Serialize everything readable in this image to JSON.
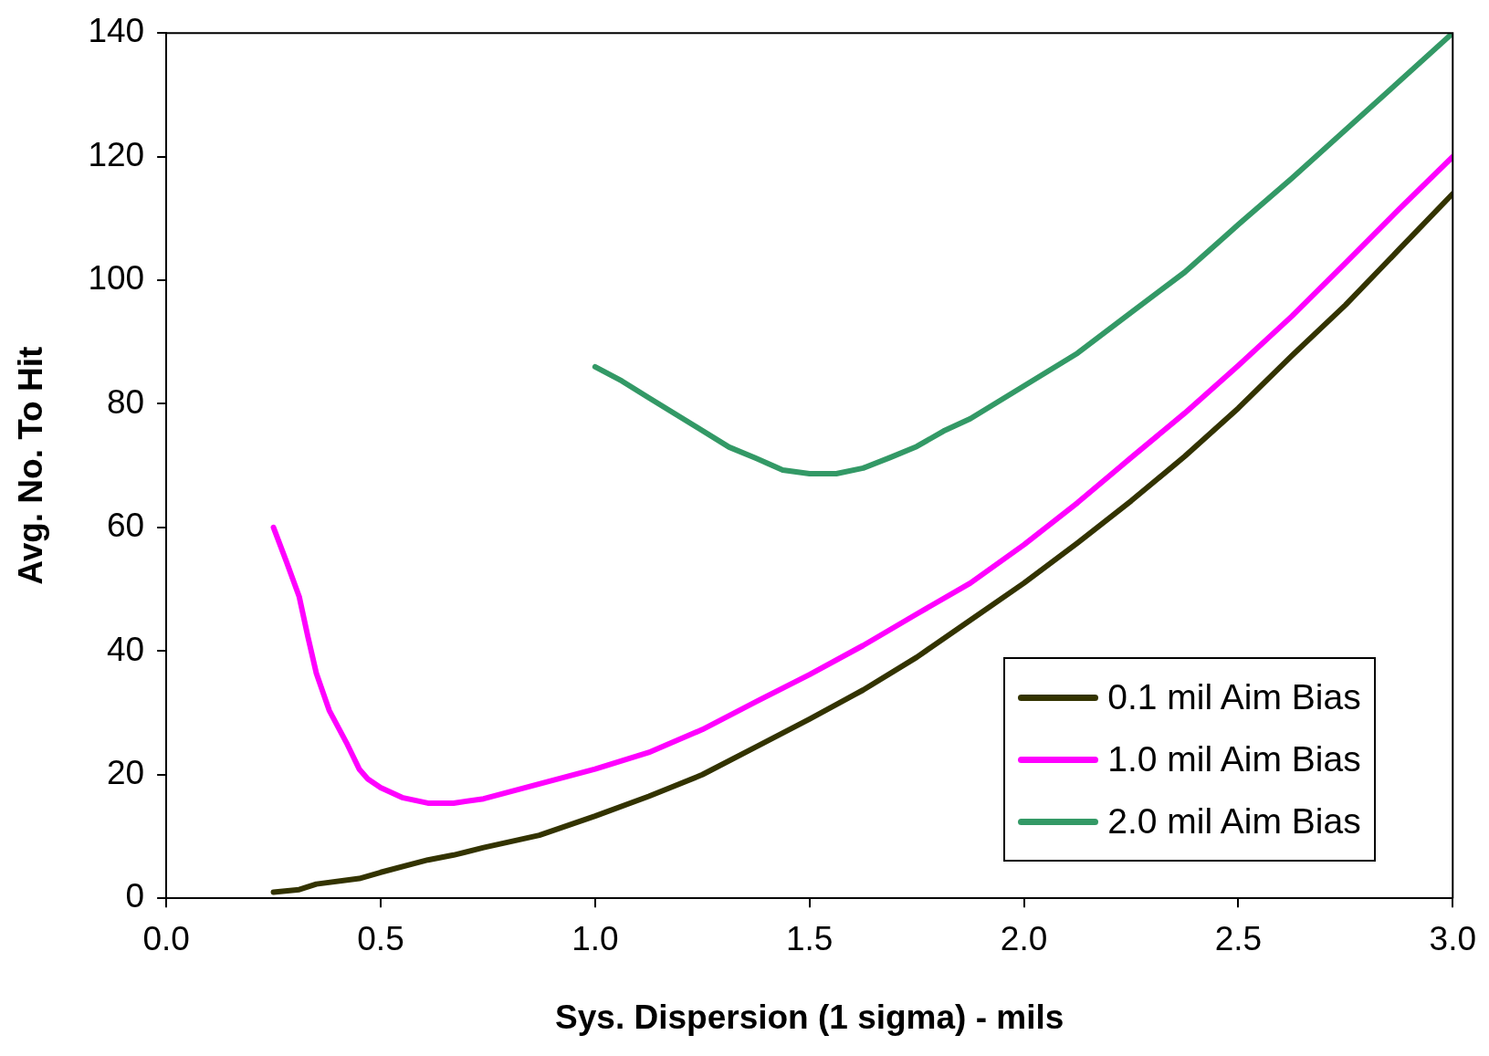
{
  "chart_data": {
    "type": "line",
    "xlabel": "Sys. Dispersion (1 sigma) - mils",
    "ylabel": "Avg. No. To Hit",
    "xlim": [
      0,
      3
    ],
    "xticks": [
      {
        "value": 0,
        "label": "0.0"
      },
      {
        "value": 0.5,
        "label": "0.5"
      },
      {
        "value": 1,
        "label": "1.0"
      },
      {
        "value": 1.5,
        "label": "1.5"
      },
      {
        "value": 2,
        "label": "2.0"
      },
      {
        "value": 2.5,
        "label": "2.5"
      },
      {
        "value": 3,
        "label": "3.0"
      }
    ],
    "ylim": [
      0,
      140
    ],
    "yticks": [
      0,
      20,
      40,
      60,
      80,
      100,
      120,
      140
    ],
    "grid": false,
    "legend": "bottom right",
    "marker": "none",
    "line_style": "solid",
    "series": [
      {
        "name": "0.1 mil Aim Bias",
        "color": "#333300",
        "x": [
          0.25,
          0.31,
          0.35,
          0.45,
          0.5,
          0.61,
          0.67,
          0.74,
          0.87,
          1.0,
          1.125,
          1.25,
          1.375,
          1.5,
          1.625,
          1.75,
          1.875,
          2.0,
          2.125,
          2.25,
          2.375,
          2.5,
          2.625,
          2.75,
          2.875,
          3.0
        ],
        "values": [
          1,
          1.4,
          2.3,
          3.2,
          4.2,
          6.2,
          7,
          8.2,
          10.2,
          13.3,
          16.5,
          20,
          24.5,
          29,
          33.7,
          39,
          45,
          51,
          57.5,
          64.3,
          71.5,
          79.3,
          87.8,
          96,
          105,
          114
        ]
      },
      {
        "name": "1.0 mil Aim Bias",
        "color": "#ff00ff",
        "x": [
          0.25,
          0.28,
          0.31,
          0.33,
          0.35,
          0.38,
          0.42,
          0.45,
          0.47,
          0.5,
          0.55,
          0.61,
          0.67,
          0.74,
          0.87,
          0.94,
          1.0,
          1.125,
          1.25,
          1.375,
          1.5,
          1.625,
          1.75,
          1.875,
          2.0,
          2.125,
          2.25,
          2.375,
          2.5,
          2.625,
          2.75,
          2.875,
          3.0
        ],
        "values": [
          60,
          54.5,
          48.8,
          42.4,
          36.4,
          30.4,
          25.2,
          20.9,
          19.3,
          17.9,
          16.3,
          15.4,
          15.4,
          16.1,
          18.5,
          19.8,
          20.9,
          23.6,
          27.3,
          31.8,
          36.2,
          40.9,
          46,
          51,
          57.2,
          64,
          71.3,
          78.5,
          86.2,
          94.2,
          102.8,
          111.5,
          120
        ]
      },
      {
        "name": "2.0 mil Aim Bias",
        "color": "#339966",
        "x": [
          1.0,
          1.0625,
          1.125,
          1.3125,
          1.375,
          1.4375,
          1.5,
          1.5625,
          1.625,
          1.6875,
          1.75,
          1.8125,
          1.875,
          2.125,
          2.25,
          2.375,
          2.5,
          2.625,
          3.0
        ],
        "values": [
          86,
          83.7,
          81,
          73,
          71.2,
          69.3,
          68.7,
          68.7,
          69.6,
          71.3,
          73.1,
          75.6,
          77.6,
          88.2,
          94.8,
          101.3,
          109,
          116.5,
          140
        ]
      }
    ]
  }
}
